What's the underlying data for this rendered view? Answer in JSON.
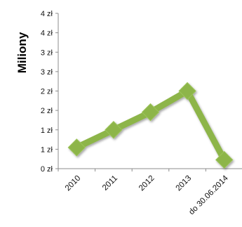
{
  "chart_data": {
    "type": "line",
    "ylabel": "Miliony",
    "categories": [
      "2010",
      "2011",
      "2012",
      "2013",
      "do 30.06.2014"
    ],
    "series": [
      {
        "values": [
          0.6,
          1.1,
          1.6,
          2.2,
          0.25
        ]
      }
    ],
    "ylim": [
      0,
      4.4
    ],
    "ytick_values": [
      0,
      0.55,
      1.1,
      1.65,
      2.2,
      2.75,
      3.3,
      3.85,
      4.4
    ],
    "ytick_labels": [
      "0 zł",
      "1 zł",
      "1 zł",
      "2 zł",
      "2 zł",
      "3 zł",
      "3 zł",
      "4 zł",
      "4 zł"
    ],
    "grid": false,
    "legend": "none",
    "line_color": "#8DB54A",
    "marker_color": "#8DB54A",
    "marker_shape": "diamond"
  }
}
